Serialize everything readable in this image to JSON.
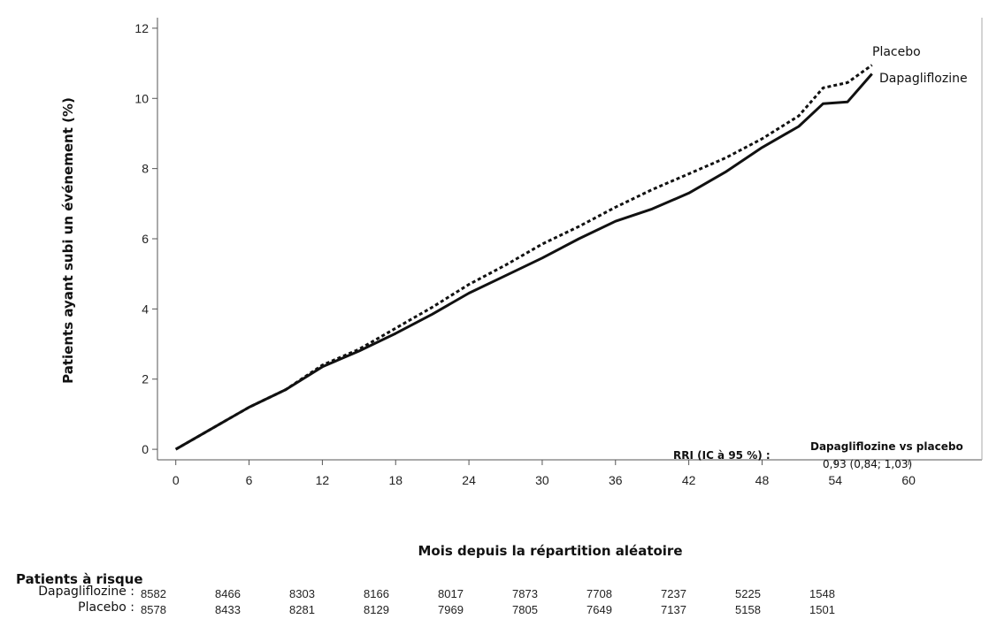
{
  "chart_data": {
    "type": "line",
    "ylabel": "Patients ayant subi un événement (%)",
    "xlabel": "Mois depuis la répartition aléatoire",
    "xlim": [
      -1.5,
      66
    ],
    "ylim": [
      -0.3,
      12.3
    ],
    "x_ticks": [
      0,
      6,
      12,
      18,
      24,
      30,
      36,
      42,
      48,
      54,
      60
    ],
    "y_ticks": [
      0,
      2,
      4,
      6,
      8,
      10,
      12
    ],
    "grid": false,
    "series": [
      {
        "name": "Placebo",
        "style": "dotted",
        "color": "#111111",
        "points": [
          [
            0,
            0
          ],
          [
            3,
            0.6
          ],
          [
            6,
            1.2
          ],
          [
            9,
            1.7
          ],
          [
            12,
            2.4
          ],
          [
            15,
            2.85
          ],
          [
            18,
            3.45
          ],
          [
            21,
            4.05
          ],
          [
            24,
            4.7
          ],
          [
            27,
            5.25
          ],
          [
            30,
            5.85
          ],
          [
            33,
            6.35
          ],
          [
            36,
            6.9
          ],
          [
            39,
            7.4
          ],
          [
            42,
            7.85
          ],
          [
            45,
            8.3
          ],
          [
            48,
            8.85
          ],
          [
            51,
            9.5
          ],
          [
            53,
            10.3
          ],
          [
            55,
            10.45
          ],
          [
            56,
            10.7
          ],
          [
            57,
            10.95
          ]
        ]
      },
      {
        "name": "Dapagliflozine",
        "style": "solid",
        "color": "#111111",
        "points": [
          [
            0,
            0
          ],
          [
            3,
            0.6
          ],
          [
            6,
            1.2
          ],
          [
            9,
            1.7
          ],
          [
            12,
            2.35
          ],
          [
            15,
            2.8
          ],
          [
            18,
            3.3
          ],
          [
            21,
            3.85
          ],
          [
            24,
            4.45
          ],
          [
            27,
            4.95
          ],
          [
            30,
            5.45
          ],
          [
            33,
            6.0
          ],
          [
            36,
            6.5
          ],
          [
            39,
            6.85
          ],
          [
            42,
            7.3
          ],
          [
            45,
            7.9
          ],
          [
            48,
            8.6
          ],
          [
            51,
            9.2
          ],
          [
            53,
            9.85
          ],
          [
            55,
            9.9
          ],
          [
            56,
            10.3
          ],
          [
            57,
            10.7
          ]
        ]
      }
    ],
    "annotation": {
      "label": "RRI (IC à 95 %) :",
      "comparison": "Dapagliflozine  vs placebo",
      "value": "0,93 (0,84; 1,03)"
    }
  },
  "risk_table": {
    "title": "Patients à risque",
    "rows": [
      {
        "name": "Dapagliflozine :",
        "values": [
          "8582",
          "8466",
          "8303",
          "8166",
          "8017",
          "7873",
          "7708",
          "7237",
          "5225",
          "1548"
        ]
      },
      {
        "name": "Placebo :",
        "values": [
          "8578",
          "8433",
          "8281",
          "8129",
          "7969",
          "7805",
          "7649",
          "7137",
          "5158",
          "1501"
        ]
      }
    ]
  }
}
